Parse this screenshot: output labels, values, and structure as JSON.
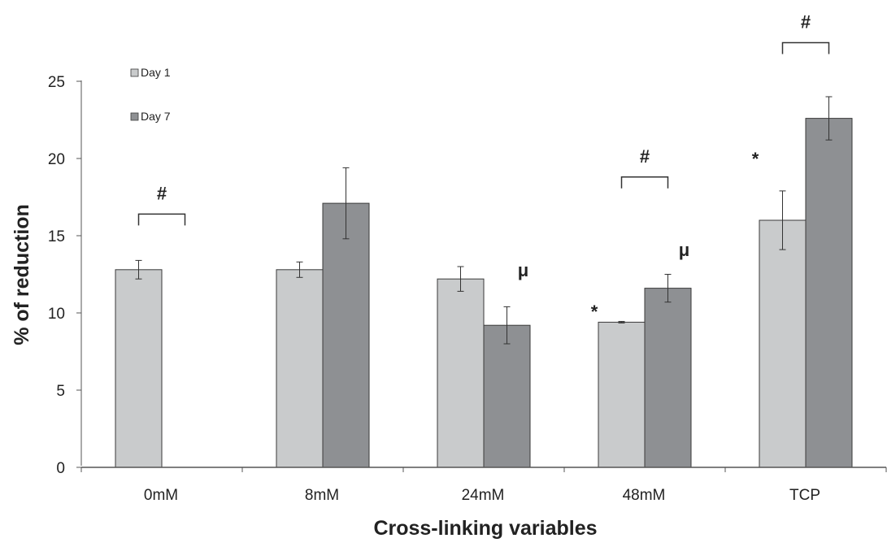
{
  "chart_data": {
    "type": "bar",
    "title": "",
    "xlabel": "Cross-linking variables",
    "ylabel": "% of reduction",
    "categories": [
      "0mM",
      "8mM",
      "24mM",
      "48mM",
      "TCP"
    ],
    "ylim": [
      0,
      25
    ],
    "yticks": [
      0,
      5,
      10,
      15,
      20,
      25
    ],
    "grid": false,
    "legend_position": "top-left",
    "series": [
      {
        "name": "Day 1",
        "color": "#c9cbcc",
        "values": [
          12.8,
          12.8,
          12.2,
          9.4,
          16.0
        ],
        "errors": [
          0.6,
          0.5,
          0.8,
          0.05,
          1.9
        ]
      },
      {
        "name": "Day 7",
        "color": "#8e9093",
        "values": [
          null,
          17.1,
          9.2,
          11.6,
          22.6
        ],
        "errors": [
          null,
          2.3,
          1.2,
          0.9,
          1.4
        ]
      }
    ],
    "annotations": [
      {
        "text": "#",
        "category": "0mM",
        "kind": "bracket",
        "y": 16.4
      },
      {
        "text": "#",
        "category": "48mM",
        "kind": "bracket",
        "y": 18.8
      },
      {
        "text": "#",
        "category": "TCP",
        "kind": "bracket",
        "y": 27.5
      },
      {
        "text": "*",
        "category": "48mM",
        "series": "Day 1",
        "y": 10.1
      },
      {
        "text": "*",
        "category": "TCP",
        "series": "Day 1",
        "y": 20.0
      },
      {
        "text": "μ",
        "category": "24mM",
        "series": "Day 7",
        "y": 12.8
      },
      {
        "text": "μ",
        "category": "48mM",
        "series": "Day 7",
        "y": 14.1
      }
    ]
  }
}
